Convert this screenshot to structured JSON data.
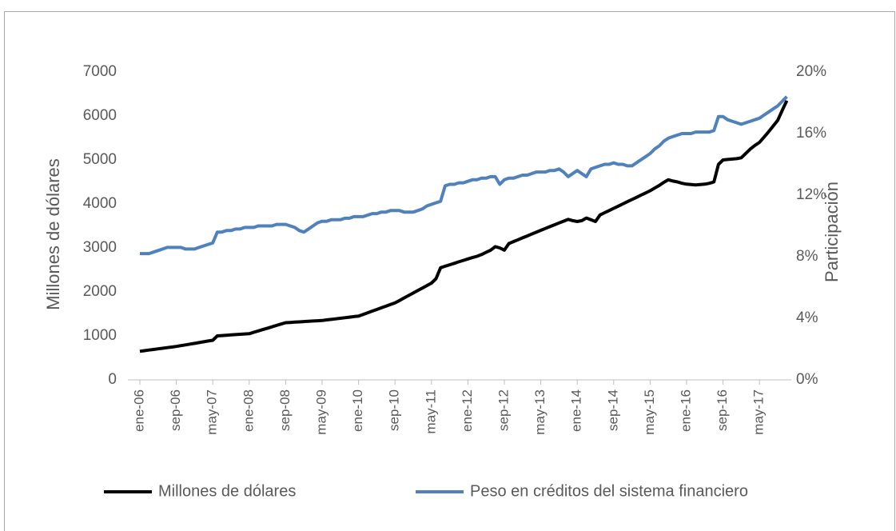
{
  "chart_data": {
    "type": "line",
    "categories": [
      "ene-06",
      null,
      null,
      null,
      null,
      null,
      null,
      null,
      "sep-06",
      null,
      null,
      null,
      null,
      null,
      null,
      null,
      "may-07",
      null,
      null,
      null,
      null,
      null,
      null,
      null,
      "ene-08",
      null,
      null,
      null,
      null,
      null,
      null,
      null,
      "sep-08",
      null,
      null,
      null,
      null,
      null,
      null,
      null,
      "may-09",
      null,
      null,
      null,
      null,
      null,
      null,
      null,
      "ene-10",
      null,
      null,
      null,
      null,
      null,
      null,
      null,
      "sep-10",
      null,
      null,
      null,
      null,
      null,
      null,
      null,
      "may-11",
      null,
      null,
      null,
      null,
      null,
      null,
      null,
      "ene-12",
      null,
      null,
      null,
      null,
      null,
      null,
      null,
      "sep-12",
      null,
      null,
      null,
      null,
      null,
      null,
      null,
      "may-13",
      null,
      null,
      null,
      null,
      null,
      null,
      null,
      "ene-14",
      null,
      null,
      null,
      null,
      null,
      null,
      null,
      "sep-14",
      null,
      null,
      null,
      null,
      null,
      null,
      null,
      "may-15",
      null,
      null,
      null,
      null,
      null,
      null,
      null,
      "ene-16",
      null,
      null,
      null,
      null,
      null,
      null,
      null,
      "sep-16",
      null,
      null,
      null,
      null,
      null,
      null,
      null,
      "may-17",
      null,
      null,
      null,
      null,
      null,
      null
    ],
    "series": [
      {
        "name": "Millones de dólares",
        "color": "#000000",
        "values": [
          650,
          664,
          678,
          691,
          705,
          719,
          733,
          746,
          760,
          778,
          795,
          813,
          830,
          848,
          865,
          883,
          900,
          1000,
          1007,
          1014,
          1021,
          1029,
          1036,
          1043,
          1050,
          1081,
          1113,
          1144,
          1175,
          1206,
          1238,
          1269,
          1300,
          1306,
          1313,
          1319,
          1325,
          1331,
          1338,
          1344,
          1350,
          1363,
          1375,
          1388,
          1400,
          1413,
          1425,
          1438,
          1450,
          1488,
          1525,
          1563,
          1600,
          1638,
          1675,
          1713,
          1750,
          1806,
          1863,
          1919,
          1975,
          2031,
          2088,
          2144,
          2200,
          2300,
          2550,
          2583,
          2617,
          2650,
          2683,
          2717,
          2750,
          2780,
          2810,
          2850,
          2900,
          2950,
          3030,
          3000,
          2950,
          3100,
          3143,
          3186,
          3229,
          3271,
          3314,
          3357,
          3400,
          3442,
          3483,
          3525,
          3567,
          3608,
          3650,
          3620,
          3600,
          3620,
          3680,
          3640,
          3600,
          3750,
          3800,
          3850,
          3900,
          3950,
          4000,
          4050,
          4100,
          4150,
          4200,
          4250,
          4300,
          4360,
          4420,
          4490,
          4550,
          4520,
          4500,
          4470,
          4450,
          4440,
          4430,
          4440,
          4450,
          4470,
          4500,
          4900,
          5000,
          5010,
          5020,
          5030,
          5050,
          5150,
          5250,
          5330,
          5400,
          5520,
          5640,
          5770,
          5900,
          6130,
          6350
        ]
      },
      {
        "name": "Peso en créditos del sistema financiero",
        "color": "#4f81bd",
        "axis": "y2",
        "values": [
          8.2,
          8.2,
          8.2,
          8.3,
          8.4,
          8.5,
          8.6,
          8.6,
          8.6,
          8.6,
          8.5,
          8.5,
          8.5,
          8.6,
          8.7,
          8.8,
          8.9,
          9.6,
          9.6,
          9.7,
          9.7,
          9.8,
          9.8,
          9.9,
          9.9,
          9.9,
          10.0,
          10.0,
          10.0,
          10.0,
          10.1,
          10.1,
          10.1,
          10.0,
          9.9,
          9.7,
          9.6,
          9.8,
          10.0,
          10.2,
          10.3,
          10.3,
          10.4,
          10.4,
          10.4,
          10.5,
          10.5,
          10.6,
          10.6,
          10.6,
          10.7,
          10.8,
          10.8,
          10.9,
          10.9,
          11.0,
          11.0,
          11.0,
          10.9,
          10.9,
          10.9,
          11.0,
          11.1,
          11.3,
          11.4,
          11.5,
          11.6,
          12.6,
          12.7,
          12.7,
          12.8,
          12.8,
          12.9,
          13.0,
          13.0,
          13.1,
          13.1,
          13.2,
          13.2,
          12.7,
          13.0,
          13.1,
          13.1,
          13.2,
          13.3,
          13.3,
          13.4,
          13.5,
          13.5,
          13.5,
          13.6,
          13.6,
          13.7,
          13.5,
          13.2,
          13.4,
          13.6,
          13.4,
          13.2,
          13.7,
          13.8,
          13.9,
          14.0,
          14.0,
          14.1,
          14.0,
          14.0,
          13.9,
          13.9,
          14.1,
          14.3,
          14.5,
          14.7,
          15.0,
          15.2,
          15.5,
          15.7,
          15.8,
          15.9,
          16.0,
          16.0,
          16.0,
          16.1,
          16.1,
          16.1,
          16.1,
          16.2,
          17.1,
          17.1,
          16.9,
          16.8,
          16.7,
          16.6,
          16.7,
          16.8,
          16.9,
          17.0,
          17.2,
          17.4,
          17.6,
          17.8,
          18.1,
          18.4
        ]
      }
    ],
    "y_label": "Millones de dólares",
    "y2_label": "Participación",
    "ylim": [
      0,
      7000
    ],
    "yticks": [
      0,
      1000,
      2000,
      3000,
      4000,
      5000,
      6000,
      7000
    ],
    "y2lim": [
      0,
      20
    ],
    "y2ticks": [
      {
        "value": 0,
        "label": "0%"
      },
      {
        "value": 4,
        "label": "4%"
      },
      {
        "value": 8,
        "label": "8%"
      },
      {
        "value": 12,
        "label": "12%"
      },
      {
        "value": 16,
        "label": "16%"
      },
      {
        "value": 20,
        "label": "20%"
      }
    ],
    "legend": "bottom",
    "grid": false
  }
}
